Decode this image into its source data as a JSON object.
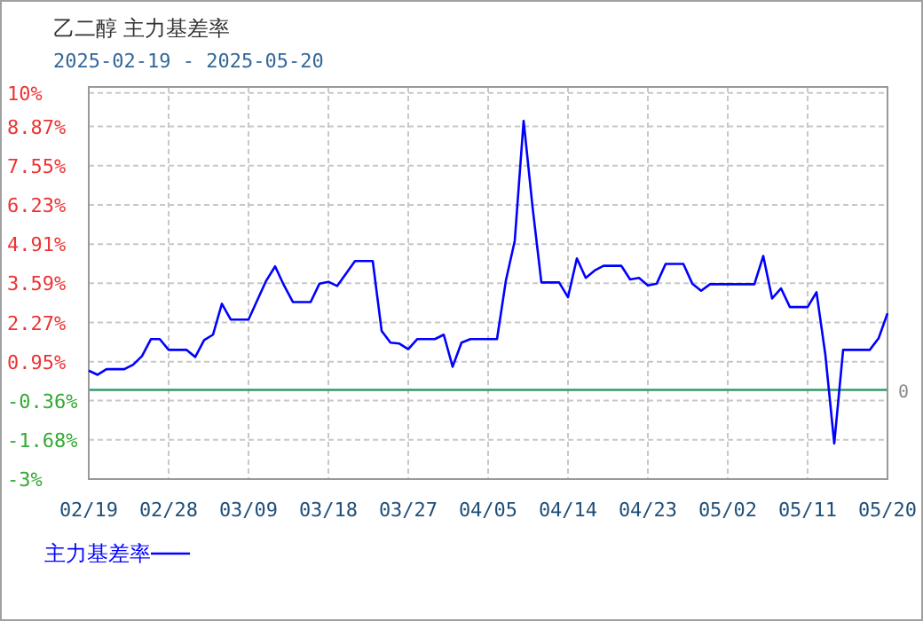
{
  "chart_data": {
    "type": "line",
    "title": "乙二醇 主力基差率",
    "subtitle": "2025-02-19 - 2025-05-20",
    "x": [
      "2025-02-19",
      "2025-02-20",
      "2025-02-21",
      "2025-02-23",
      "2025-02-24",
      "2025-02-25",
      "2025-02-26",
      "2025-02-27",
      "2025-02-28",
      "2025-03-02",
      "2025-03-03",
      "2025-03-04",
      "2025-03-05",
      "2025-03-06",
      "2025-03-07",
      "2025-03-09",
      "2025-03-11",
      "2025-03-12",
      "2025-03-13",
      "2025-03-14",
      "2025-03-16",
      "2025-03-17",
      "2025-03-18",
      "2025-03-19",
      "2025-03-21",
      "2025-03-23",
      "2025-03-24",
      "2025-03-25",
      "2025-03-26",
      "2025-03-27",
      "2025-03-28",
      "2025-03-30",
      "2025-03-31",
      "2025-04-01",
      "2025-04-02",
      "2025-04-03",
      "2025-04-06",
      "2025-04-07",
      "2025-04-08",
      "2025-04-09",
      "2025-04-10",
      "2025-04-11",
      "2025-04-13",
      "2025-04-14",
      "2025-04-15",
      "2025-04-16",
      "2025-04-17",
      "2025-04-18",
      "2025-04-20",
      "2025-04-21",
      "2025-04-22",
      "2025-04-23",
      "2025-04-24",
      "2025-04-25",
      "2025-04-27",
      "2025-04-28",
      "2025-04-29",
      "2025-04-30",
      "2025-05-05",
      "2025-05-06",
      "2025-05-07",
      "2025-05-08",
      "2025-05-09",
      "2025-05-11",
      "2025-05-12",
      "2025-05-13",
      "2025-05-14",
      "2025-05-15",
      "2025-05-18",
      "2025-05-19",
      "2025-05-20"
    ],
    "series": [
      {
        "name": "主力基差率",
        "color": "#0000ff",
        "values": [
          0.65,
          0.51,
          0.7,
          0.7,
          0.85,
          1.14,
          1.71,
          1.71,
          1.35,
          1.35,
          1.11,
          1.68,
          1.86,
          2.9,
          2.37,
          2.37,
          3.68,
          4.16,
          3.52,
          2.96,
          2.96,
          3.58,
          3.64,
          3.5,
          4.34,
          4.34,
          1.99,
          1.59,
          1.56,
          1.37,
          1.71,
          1.71,
          1.86,
          0.78,
          1.59,
          1.71,
          1.71,
          3.68,
          5.02,
          9.06,
          6.17,
          3.62,
          3.62,
          3.12,
          4.43,
          3.77,
          4.02,
          4.18,
          4.18,
          3.72,
          3.77,
          3.52,
          3.58,
          4.24,
          4.24,
          3.58,
          3.34,
          3.56,
          3.56,
          4.51,
          3.08,
          3.42,
          2.79,
          2.79,
          3.29,
          1.18,
          -1.8,
          1.35,
          1.35,
          1.74,
          2.58
        ]
      }
    ],
    "xlim": [
      "2025-02-19",
      "2025-05-20"
    ],
    "xticks": [
      {
        "value": "2025-02-19",
        "label": "02/19"
      },
      {
        "value": "2025-02-28",
        "label": "02/28"
      },
      {
        "value": "2025-03-09",
        "label": "03/09"
      },
      {
        "value": "2025-03-18",
        "label": "03/18"
      },
      {
        "value": "2025-03-27",
        "label": "03/27"
      },
      {
        "value": "2025-04-05",
        "label": "04/05"
      },
      {
        "value": "2025-04-14",
        "label": "04/14"
      },
      {
        "value": "2025-04-23",
        "label": "04/23"
      },
      {
        "value": "2025-05-02",
        "label": "05/02"
      },
      {
        "value": "2025-05-11",
        "label": "05/11"
      },
      {
        "value": "2025-05-20",
        "label": "05/20"
      }
    ],
    "ylim": [
      -3,
      10.2
    ],
    "yticks": [
      {
        "value": 10,
        "label": "10%"
      },
      {
        "value": 8.87,
        "label": "8.87%"
      },
      {
        "value": 7.55,
        "label": "7.55%"
      },
      {
        "value": 6.23,
        "label": "6.23%"
      },
      {
        "value": 4.91,
        "label": "4.91%"
      },
      {
        "value": 3.59,
        "label": "3.59%"
      },
      {
        "value": 2.27,
        "label": "2.27%"
      },
      {
        "value": 0.95,
        "label": "0.95%"
      },
      {
        "value": -0.36,
        "label": "-0.36%"
      },
      {
        "value": -1.68,
        "label": "-1.68%"
      },
      {
        "value": -3,
        "label": "-3%"
      }
    ],
    "ref_lines": [
      {
        "axis": "y",
        "value": 0,
        "label": "0",
        "color": "#339966"
      }
    ],
    "grid": true,
    "legend": "bottom"
  }
}
